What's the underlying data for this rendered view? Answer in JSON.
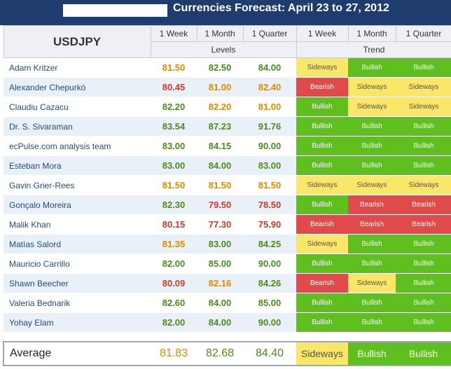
{
  "title": "Currencies Forecast: April 23 to 27, 2012",
  "pair": "USDJPY",
  "header": {
    "periods": [
      "1 Week",
      "1 Month",
      "1 Quarter"
    ],
    "levels_label": "Levels",
    "trend_label": "Trend"
  },
  "colors": {
    "header_bg": "#1f3c6e",
    "bullish": "#5fbf1f",
    "bearish": "#e04a4a",
    "sideways": "#fbe767",
    "green_text": "#4b8a1e",
    "orange_text": "#d98c00",
    "red_text": "#c83a2a"
  },
  "rows": [
    {
      "name": "Adam Kritzer",
      "levels": [
        "81.50",
        "82.50",
        "84.00"
      ],
      "level_colors": [
        "orange",
        "green",
        "green"
      ],
      "trends": [
        "Sideways",
        "Bullish",
        "Bullish"
      ]
    },
    {
      "name": "Alexander Chepurkó",
      "levels": [
        "80.45",
        "81.00",
        "82.40"
      ],
      "level_colors": [
        "red",
        "orange",
        "orange"
      ],
      "trends": [
        "Bearish",
        "Sideways",
        "Sideways"
      ]
    },
    {
      "name": "Claudiu Cazacu",
      "levels": [
        "82.20",
        "82.20",
        "81.00"
      ],
      "level_colors": [
        "green",
        "orange",
        "orange"
      ],
      "trends": [
        "Bullish",
        "Sideways",
        "Sideways"
      ]
    },
    {
      "name": "Dr. S. Sivaraman",
      "levels": [
        "83.54",
        "87.23",
        "91.76"
      ],
      "level_colors": [
        "green",
        "green",
        "green"
      ],
      "trends": [
        "Bullish",
        "Bullish",
        "Bullish"
      ]
    },
    {
      "name": "ecPulse.com analysis team",
      "levels": [
        "83.00",
        "84.15",
        "90.00"
      ],
      "level_colors": [
        "green",
        "green",
        "green"
      ],
      "trends": [
        "Bullish",
        "Bullish",
        "Bullish"
      ]
    },
    {
      "name": "Esteban Mora",
      "levels": [
        "83.00",
        "84.00",
        "83.00"
      ],
      "level_colors": [
        "green",
        "green",
        "green"
      ],
      "trends": [
        "Bullish",
        "Bullish",
        "Bullish"
      ]
    },
    {
      "name": "Gavin Grier-Rees",
      "levels": [
        "81.50",
        "81.50",
        "81.50"
      ],
      "level_colors": [
        "orange",
        "orange",
        "orange"
      ],
      "trends": [
        "Sideways",
        "Sideways",
        "Sideways"
      ]
    },
    {
      "name": "Gonçalo Moreira",
      "levels": [
        "82.30",
        "79.50",
        "78.50"
      ],
      "level_colors": [
        "green",
        "red",
        "red"
      ],
      "trends": [
        "Bullish",
        "Bearish",
        "Bearish"
      ]
    },
    {
      "name": "Malik Khan",
      "levels": [
        "80.15",
        "77.30",
        "75.90"
      ],
      "level_colors": [
        "red",
        "red",
        "red"
      ],
      "trends": [
        "Bearish",
        "Bearish",
        "Bearish"
      ]
    },
    {
      "name": "Matías Salord",
      "levels": [
        "81.35",
        "83.00",
        "84.25"
      ],
      "level_colors": [
        "orange",
        "green",
        "green"
      ],
      "trends": [
        "Sideways",
        "Bullish",
        "Bullish"
      ]
    },
    {
      "name": "Mauricio Carrillo",
      "levels": [
        "82.00",
        "85.00",
        "90.00"
      ],
      "level_colors": [
        "green",
        "green",
        "green"
      ],
      "trends": [
        "Bullish",
        "Bullish",
        "Bullish"
      ]
    },
    {
      "name": "Shawn Beecher",
      "levels": [
        "80.09",
        "82.16",
        "84.26"
      ],
      "level_colors": [
        "red",
        "orange",
        "green"
      ],
      "trends": [
        "Bearish",
        "Sideways",
        "Bullish"
      ]
    },
    {
      "name": "Valeria Bednarik",
      "levels": [
        "82.60",
        "84.00",
        "85.00"
      ],
      "level_colors": [
        "green",
        "green",
        "green"
      ],
      "trends": [
        "Bullish",
        "Bullish",
        "Bullish"
      ]
    },
    {
      "name": "Yohay Elam",
      "levels": [
        "82.00",
        "84.00",
        "90.00"
      ],
      "level_colors": [
        "green",
        "green",
        "green"
      ],
      "trends": [
        "Bullish",
        "Bullish",
        "Bullish"
      ]
    }
  ],
  "average": {
    "label": "Average",
    "levels": [
      "81.83",
      "82.68",
      "84.40"
    ],
    "level_colors": [
      "orange",
      "green",
      "green"
    ],
    "trends": [
      "Sideways",
      "Bullish",
      "Bullish"
    ]
  }
}
